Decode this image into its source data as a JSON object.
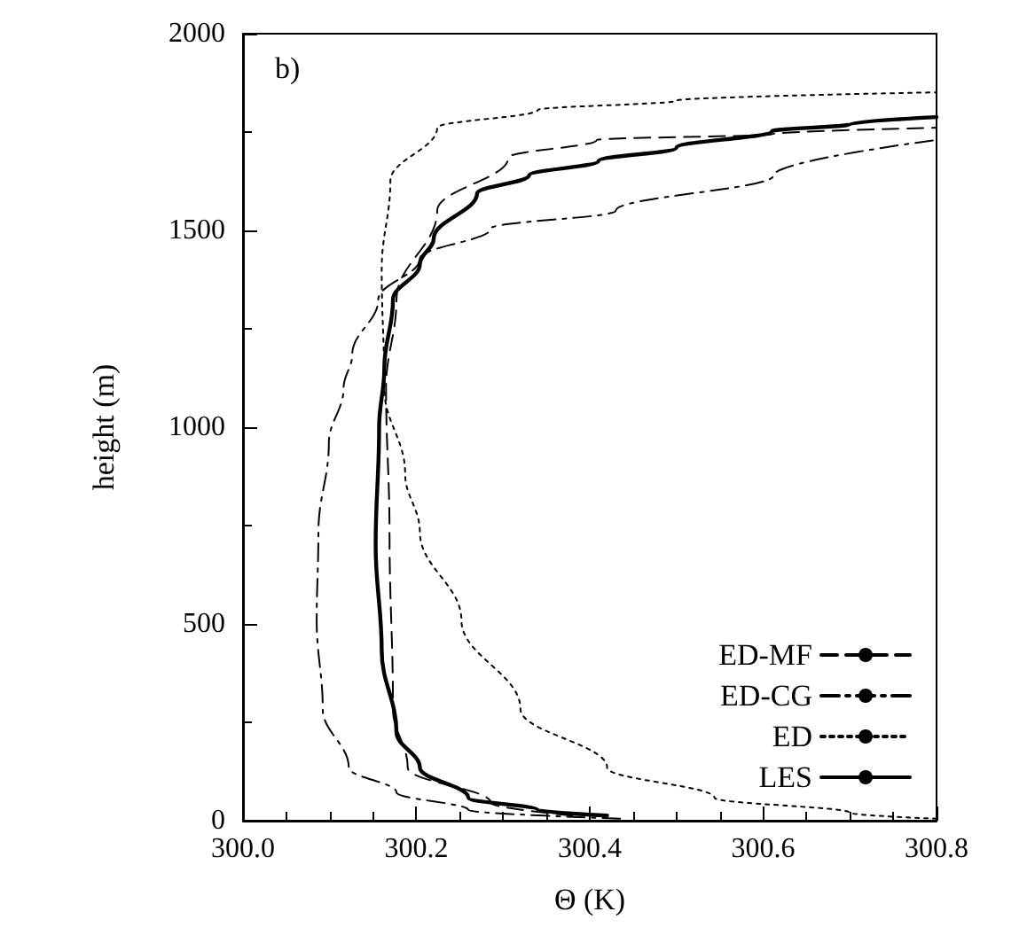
{
  "chart_data": {
    "type": "line",
    "xlabel": "Θ (K)",
    "ylabel": "height (m)",
    "annotations": [
      "b)"
    ],
    "xlim": [
      300.0,
      300.8
    ],
    "xticks": [
      {
        "value": 300.0,
        "label": "300.0"
      },
      300.2,
      300.4,
      300.6,
      300.8
    ],
    "ylim": [
      0,
      2000
    ],
    "yticks": [
      0,
      500,
      1000,
      1500,
      2000
    ],
    "grid": false,
    "legend": "bottom right",
    "marker": "none",
    "series": [
      {
        "name": "ED-MF",
        "color": "#000000",
        "line_style": "dashed",
        "x": [
          300.38,
          300.286,
          300.19,
          300.173,
          300.169,
          300.165,
          300.177,
          300.224,
          300.306,
          300.408,
          300.612,
          300.8
        ],
        "values": [
          13,
          45,
          135,
          284,
          734,
          1100,
          1324,
          1550,
          1685,
          1730,
          1745,
          1761
        ]
      },
      {
        "name": "ED-CG",
        "color": "#000000",
        "line_style": "dashdot",
        "x": [
          300.435,
          300.26,
          300.177,
          300.122,
          300.092,
          300.085,
          300.087,
          300.099,
          300.116,
          300.126,
          300.156,
          300.204,
          300.286,
          300.43,
          300.612,
          300.8
        ],
        "values": [
          5,
          27,
          72,
          135,
          284,
          509,
          734,
          959,
          1099,
          1185,
          1324,
          1428,
          1505,
          1550,
          1640,
          1730
        ]
      },
      {
        "name": "ED",
        "color": "#000000",
        "line_style": "dotted",
        "x": [
          300.8,
          300.7,
          300.544,
          300.42,
          300.32,
          300.252,
          300.204,
          300.187,
          300.163,
          300.16,
          300.17,
          300.224,
          300.34,
          300.5,
          300.8
        ],
        "values": [
          5,
          20,
          58,
          135,
          284,
          509,
          734,
          883,
          1099,
          1401,
          1626,
          1761,
          1806,
          1830,
          1851
        ]
      },
      {
        "name": "LES",
        "color": "#000000",
        "line_style": "solid",
        "x": [
          300.42,
          300.34,
          300.26,
          300.204,
          300.177,
          300.16,
          300.153,
          300.157,
          300.163,
          300.173,
          300.204,
          300.22,
          300.27,
          300.33,
          300.41,
          300.5,
          300.61,
          300.7,
          300.8
        ],
        "values": [
          13,
          27,
          58,
          135,
          225,
          432,
          700,
          1000,
          1150,
          1324,
          1414,
          1480,
          1594,
          1640,
          1676,
          1710,
          1752,
          1770,
          1788
        ]
      }
    ]
  }
}
